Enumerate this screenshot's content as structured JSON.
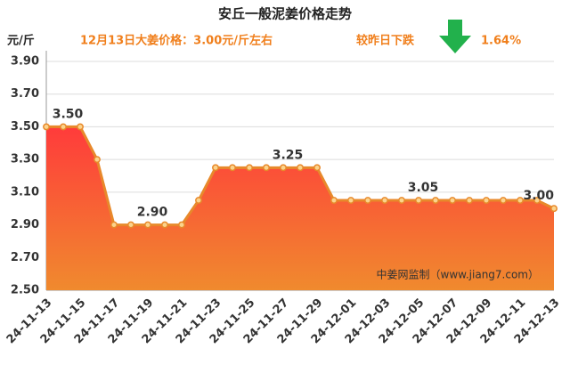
{
  "chart_data": {
    "type": "area-line",
    "title": "安丘一般泥姜价格走势",
    "y_label": "元/斤",
    "annotations": [
      "12月13日大姜价格：3.00元/斤左右",
      "较昨日下跌",
      "1.64%"
    ],
    "watermark": "中姜网监制（www.jiang7.com）",
    "categories": [
      "24-11-13",
      null,
      "24-11-15",
      null,
      "24-11-17",
      null,
      "24-11-19",
      null,
      "24-11-21",
      null,
      "24-11-23",
      null,
      "24-11-25",
      null,
      "24-11-27",
      null,
      "24-11-29",
      null,
      "24-12-01",
      null,
      "24-12-03",
      null,
      "24-12-05",
      null,
      "24-12-07",
      null,
      "24-12-09",
      null,
      "24-12-11",
      null,
      "24-12-13"
    ],
    "values": [
      3.5,
      3.5,
      3.5,
      3.3,
      2.9,
      2.9,
      2.9,
      2.9,
      2.9,
      3.05,
      3.25,
      3.25,
      3.25,
      3.25,
      3.25,
      3.25,
      3.25,
      3.05,
      3.05,
      3.05,
      3.05,
      3.05,
      3.05,
      3.05,
      3.05,
      3.05,
      3.05,
      3.05,
      3.05,
      3.05,
      3.0
    ],
    "value_labels": [
      null,
      "3.50",
      null,
      null,
      null,
      null,
      "2.90",
      null,
      null,
      null,
      null,
      null,
      null,
      null,
      "3.25",
      null,
      null,
      null,
      null,
      null,
      null,
      null,
      "3.05",
      null,
      null,
      null,
      null,
      null,
      null,
      null,
      "3.00"
    ],
    "color": "#e8892b",
    "ylim": [
      2.5,
      3.9
    ],
    "yticks": [
      {
        "value": 2.5,
        "label": "2.50"
      },
      {
        "value": 2.7,
        "label": "2.70"
      },
      {
        "value": 2.9,
        "label": "2.90"
      },
      {
        "value": 3.1,
        "label": "3.10"
      },
      {
        "value": 3.3,
        "label": "3.30"
      },
      {
        "value": 3.5,
        "label": "3.50"
      },
      {
        "value": 3.7,
        "label": "3.70"
      },
      {
        "value": 3.9,
        "label": "3.90"
      }
    ],
    "grid": true
  }
}
